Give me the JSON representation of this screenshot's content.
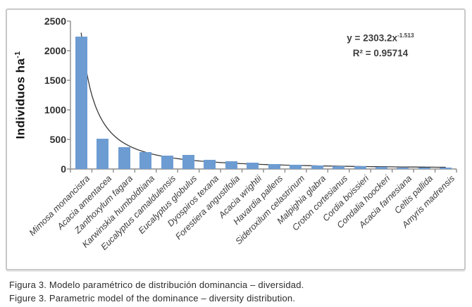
{
  "figure": {
    "caption": {
      "line1": "Figura 3. Modelo paramétrico de distribución dominancia – diversidad.",
      "line2": "Figure 3. Parametric model of the dominance – diversity distribution."
    }
  },
  "chart_data": {
    "type": "bar",
    "title": "",
    "xlabel": "",
    "ylabel": "Individuos ha⁻¹",
    "ylabel_parts": {
      "base": "Individuos ha",
      "sup": "-1"
    },
    "ylim": [
      0,
      2500
    ],
    "yticks": [
      0,
      500,
      1000,
      1500,
      2000,
      2500
    ],
    "grid": false,
    "legend_position": "none",
    "bar_color": "#6d9cd2",
    "axis_color": "#8c8c8c",
    "trendline": {
      "type": "power",
      "a": 2303.2,
      "b": -1.513,
      "r2": 0.95714,
      "color": "#3a3a3a"
    },
    "annotation": {
      "equation_base": "y = 2303.2x",
      "equation_exponent": "-1.513",
      "r_squared": "R² = 0.95714"
    },
    "categories": [
      "Mimosa monancistra",
      "Acacia amentacea",
      "Zanthoxylum fagara",
      "Karwinskia humboldtiana",
      "Eucalyptus camaldulensis",
      "Eucalyptus globulus",
      "Dyospiros texana",
      "Forestiera angustifolia",
      "Acacia wrightii",
      "Havardia pallens",
      "Sideroxilum celastrinum",
      "Malpighia glabra",
      "Croton cortesianus",
      "Cordia boissieri",
      "Condalia hoockeri",
      "Acacia farnesiana",
      "Celtis pallida",
      "Amyris madrensis"
    ],
    "values": [
      2240,
      510,
      370,
      290,
      230,
      236,
      158,
      134,
      110,
      80,
      67,
      55,
      47,
      43,
      34,
      30,
      28,
      24
    ]
  }
}
